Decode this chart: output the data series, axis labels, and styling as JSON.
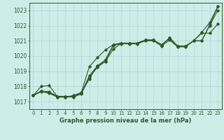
{
  "title": "Graphe pression niveau de la mer (hPa)",
  "xlabel_ticks": [
    0,
    1,
    2,
    3,
    4,
    5,
    6,
    7,
    8,
    9,
    10,
    11,
    12,
    13,
    14,
    15,
    16,
    17,
    18,
    19,
    20,
    21,
    22,
    23
  ],
  "ylim": [
    1016.5,
    1023.5
  ],
  "xlim": [
    -0.5,
    23.5
  ],
  "yticks": [
    1017,
    1018,
    1019,
    1020,
    1021,
    1022,
    1023
  ],
  "bg_color": "#cceee8",
  "grid_color": "#aad8d0",
  "line_color": "#2d5a27",
  "series": [
    [
      1017.4,
      1017.7,
      1017.6,
      1017.3,
      1017.3,
      1017.4,
      1017.6,
      1018.8,
      1019.4,
      1019.8,
      1020.75,
      1020.85,
      1020.85,
      1020.85,
      1021.0,
      1021.05,
      1020.7,
      1021.15,
      1020.65,
      1020.65,
      1021.0,
      1021.0,
      1022.1,
      1023.2
    ],
    [
      1017.4,
      1017.7,
      1017.6,
      1017.3,
      1017.3,
      1017.4,
      1017.6,
      1018.6,
      1019.2,
      1019.6,
      1020.75,
      1020.85,
      1020.85,
      1020.85,
      1021.0,
      1021.05,
      1020.7,
      1021.15,
      1020.65,
      1020.65,
      1021.0,
      1021.0,
      1022.0,
      1023.0
    ],
    [
      1017.4,
      1017.7,
      1017.6,
      1017.3,
      1017.3,
      1017.4,
      1017.6,
      1018.8,
      1019.5,
      1019.9,
      1020.75,
      1020.85,
      1020.85,
      1020.85,
      1021.0,
      1021.05,
      1020.65,
      1021.05,
      1020.65,
      1020.65,
      1021.0,
      1021.0,
      1022.0,
      1023.0
    ],
    [
      1017.4,
      1018.0,
      1018.0,
      1017.35,
      1017.35,
      1017.35,
      1017.6,
      1018.5,
      1019.35,
      1019.65,
      1020.4,
      1020.85,
      1020.85,
      1020.85,
      1021.05,
      1021.05,
      1020.7,
      1021.2,
      1020.65,
      1020.65,
      1021.0,
      1021.55,
      1022.2,
      1023.25
    ]
  ],
  "series_diverge": [
    [
      1017.4,
      1017.7,
      1017.6,
      1017.3,
      1017.3,
      1017.4,
      1017.6,
      1018.8,
      1019.5,
      1019.95,
      1020.8,
      1020.85,
      1020.85,
      1020.85,
      1021.05,
      1021.05,
      1020.65,
      1021.05,
      1020.65,
      1020.65,
      1021.0,
      1021.5,
      1021.5,
      1022.1
    ],
    [
      1017.4,
      1017.65,
      1017.6,
      1017.3,
      1017.3,
      1017.4,
      1017.55,
      1018.7,
      1019.35,
      1019.7,
      1020.75,
      1020.85,
      1020.85,
      1020.85,
      1021.05,
      1021.05,
      1020.75,
      1021.15,
      1020.65,
      1020.65,
      1021.0,
      1021.0,
      1022.05,
      1023.25
    ]
  ]
}
